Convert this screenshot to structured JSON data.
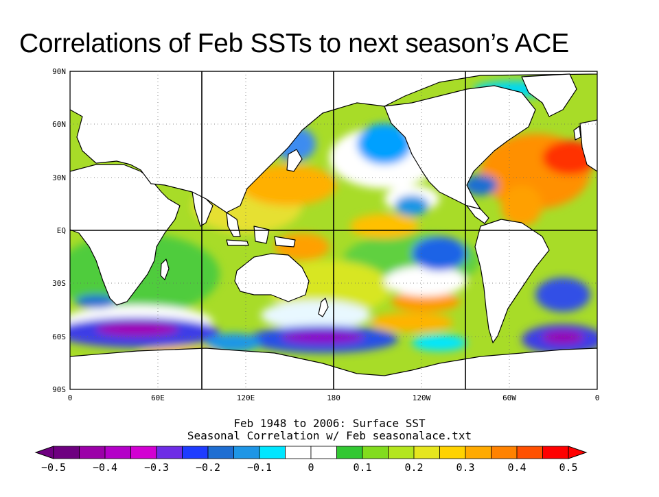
{
  "title": "Correlations of Feb SSTs to next season’s ACE",
  "map": {
    "lat_labels": [
      "90N",
      "60N",
      "30N",
      "EQ",
      "30S",
      "60S",
      "90S"
    ],
    "lon_labels": [
      "0",
      "60E",
      "120E",
      "180",
      "120W",
      "60W",
      "0"
    ],
    "caption_line1": "Feb 1948 to 2006: Surface SST",
    "caption_line2": "Seasonal Correlation w/ Feb seasonalace.txt"
  },
  "colorbar": {
    "ticks": [
      "-0.5",
      "-0.4",
      "-0.3",
      "-0.2",
      "-0.1",
      "0",
      "0.1",
      "0.2",
      "0.3",
      "0.4",
      "0.5"
    ],
    "colors": [
      "#6e0080",
      "#9b00a8",
      "#b400c8",
      "#d200d2",
      "#6e2ce6",
      "#1e3cff",
      "#1e6ed2",
      "#1e96e6",
      "#00e6ff",
      "#ffffff",
      "#ffffff",
      "#32c832",
      "#82dc1e",
      "#b4e61e",
      "#e6e61e",
      "#ffd200",
      "#ffaa00",
      "#ff8200",
      "#ff5000",
      "#ff0000"
    ],
    "colors_legend": "violet = negative correlation, red = positive correlation"
  }
}
